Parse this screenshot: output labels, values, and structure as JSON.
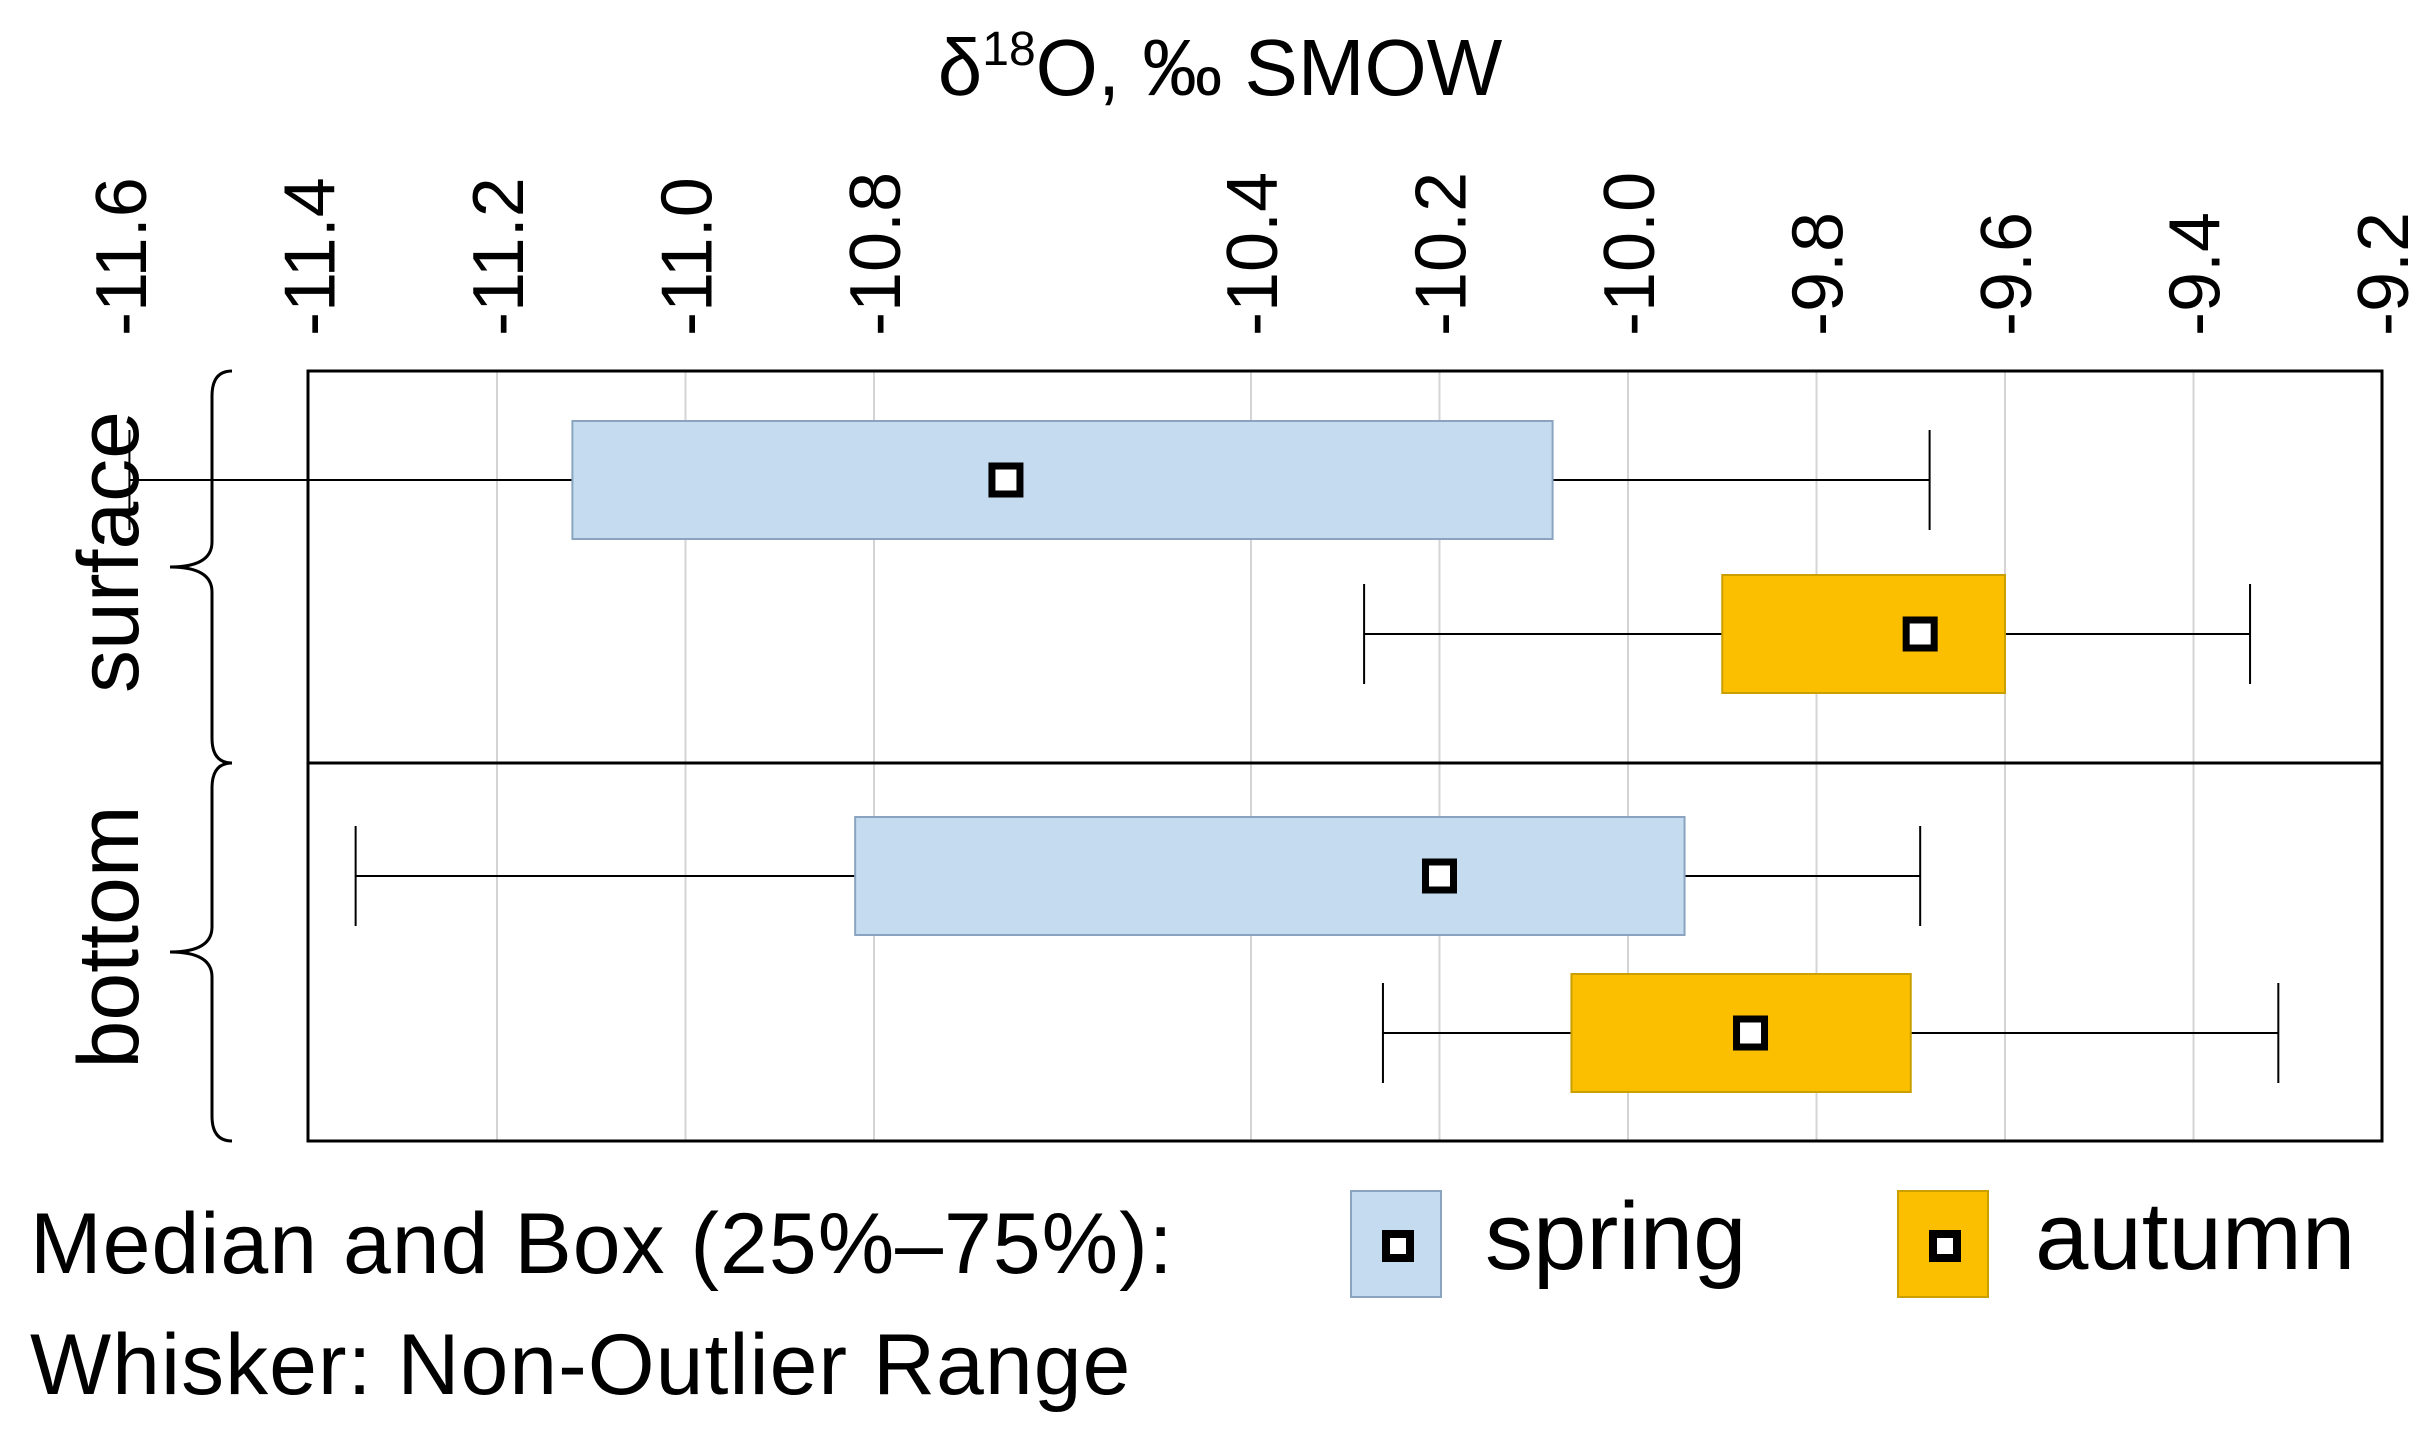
{
  "chart_data": {
    "type": "boxplot",
    "orientation": "horizontal",
    "title": "δ¹⁸O, ‰ SMOW",
    "title_parts": {
      "delta": "δ",
      "superscript": "18",
      "rest": "O, ‰ SMOW"
    },
    "x_axis": {
      "position": "top",
      "range": [
        -11.65,
        -9.25
      ],
      "ticks": [
        -11.6,
        -11.4,
        -11.2,
        -11.0,
        -10.8,
        -10.4,
        -10.2,
        -10.0,
        -9.8,
        -9.6,
        -9.4,
        -9.2
      ],
      "tick_labels": [
        "-11.6",
        "-11.4",
        "-11.2",
        "-11.0",
        "-10.8",
        "-10.4",
        "-10.2",
        "-10.0",
        "-9.8",
        "-9.6",
        "-9.4",
        "-9.2"
      ],
      "gridlines": true
    },
    "groups": [
      {
        "label": "surface",
        "series": [
          {
            "name": "spring",
            "whisker_min": -11.59,
            "q1": -11.12,
            "median": -10.66,
            "q3": -10.08,
            "whisker_max": -9.68
          },
          {
            "name": "autumn",
            "whisker_min": -10.28,
            "q1": -9.9,
            "median": -9.69,
            "q3": -9.6,
            "whisker_max": -9.34
          }
        ]
      },
      {
        "label": "bottom",
        "series": [
          {
            "name": "spring",
            "whisker_min": -11.35,
            "q1": -10.82,
            "median": -10.2,
            "q3": -9.94,
            "whisker_max": -9.69
          },
          {
            "name": "autumn",
            "whisker_min": -10.26,
            "q1": -10.06,
            "median": -9.87,
            "q3": -9.7,
            "whisker_max": -9.31
          }
        ]
      }
    ],
    "colors": {
      "spring": "#c5dbf0",
      "spring_border": "#8aa4c0",
      "autumn": "#fcbf00",
      "autumn_border": "#c9a000"
    },
    "legend": {
      "line1_label": "Median and  Box (25%–75%):",
      "spring_label": "spring",
      "autumn_label": "autumn",
      "line2_label": "Whisker: Non-Outlier Range",
      "placement": "bottom"
    }
  }
}
